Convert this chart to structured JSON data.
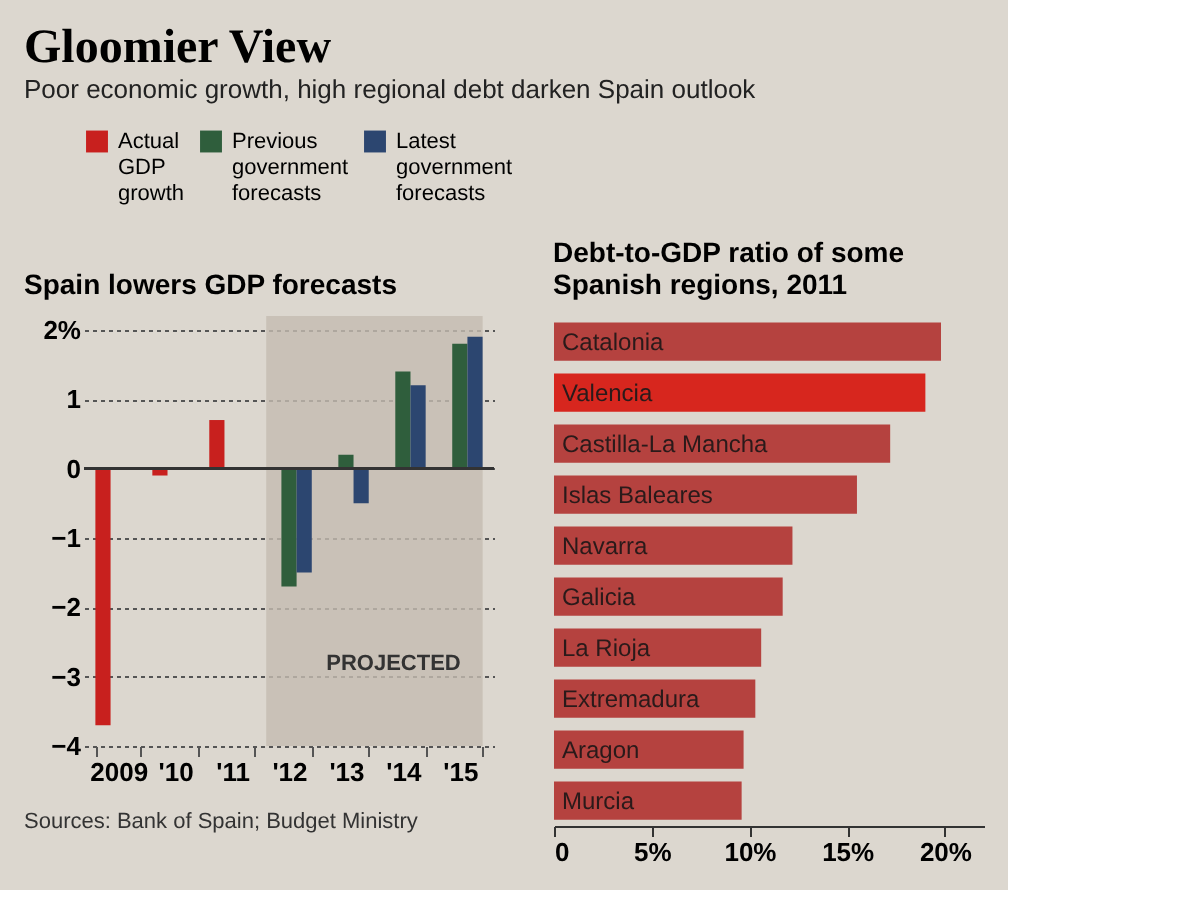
{
  "chart_data": [
    {
      "type": "other",
      "title": "Gloomier View",
      "subtitle": "Poor economic growth, high regional debt darken Spain outlook"
    },
    {
      "type": "bar",
      "title": "Spain lowers GDP forecasts",
      "categories": [
        "2009",
        "'10",
        "'11",
        "'12",
        "'13",
        "'14",
        "'15"
      ],
      "series": [
        {
          "name": "Actual GDP growth",
          "color": "#c8201e",
          "values": [
            -3.7,
            -0.1,
            0.7,
            null,
            null,
            null,
            null
          ]
        },
        {
          "name": "Previous government forecasts",
          "color": "#2f5e3c",
          "values": [
            null,
            null,
            null,
            -1.7,
            0.2,
            1.4,
            1.8
          ]
        },
        {
          "name": "Latest government forecasts",
          "color": "#2c4670",
          "values": [
            null,
            null,
            null,
            -1.5,
            -0.5,
            1.2,
            1.9
          ]
        }
      ],
      "ylim": [
        -4,
        2.2
      ],
      "yticks": [
        {
          "value": 2,
          "label": "2%"
        },
        1,
        0,
        -1,
        -2,
        -3,
        -4
      ],
      "grid": "y",
      "legend": "top",
      "ref_lines": [
        {
          "axis": "y",
          "value": 0
        }
      ],
      "bands": [
        {
          "axis": "x",
          "from": "'12",
          "to": "'15",
          "label": "PROJECTED",
          "color": "#c4bcb0"
        }
      ],
      "annotations": [
        "Sources: Bank of Spain; Budget Ministry"
      ]
    },
    {
      "type": "bar",
      "orientation": "horizontal",
      "title": "Debt-to-GDP ratio of some Spanish regions, 2011",
      "categories": [
        "Catalonia",
        "Valencia",
        "Castilla-La Mancha",
        "Islas Baleares",
        "Navarra",
        "Galicia",
        "La Rioja",
        "Extremadura",
        "Aragon",
        "Murcia"
      ],
      "values": [
        19.8,
        19.0,
        17.2,
        15.5,
        12.2,
        11.7,
        10.6,
        10.3,
        9.7,
        9.6
      ],
      "colors": [
        "#b5423f",
        "#d7261e",
        "#b5423f",
        "#b5423f",
        "#b5423f",
        "#b5423f",
        "#b5423f",
        "#b5423f",
        "#b5423f",
        "#b5423f"
      ],
      "xlim": [
        0,
        22
      ],
      "xticks": [
        0,
        {
          "value": 5,
          "label": "5%"
        },
        {
          "value": 10,
          "label": "10%"
        },
        {
          "value": 15,
          "label": "15%"
        },
        {
          "value": 20,
          "label": "20%"
        }
      ],
      "tick_labels": "x",
      "grid": false
    }
  ]
}
